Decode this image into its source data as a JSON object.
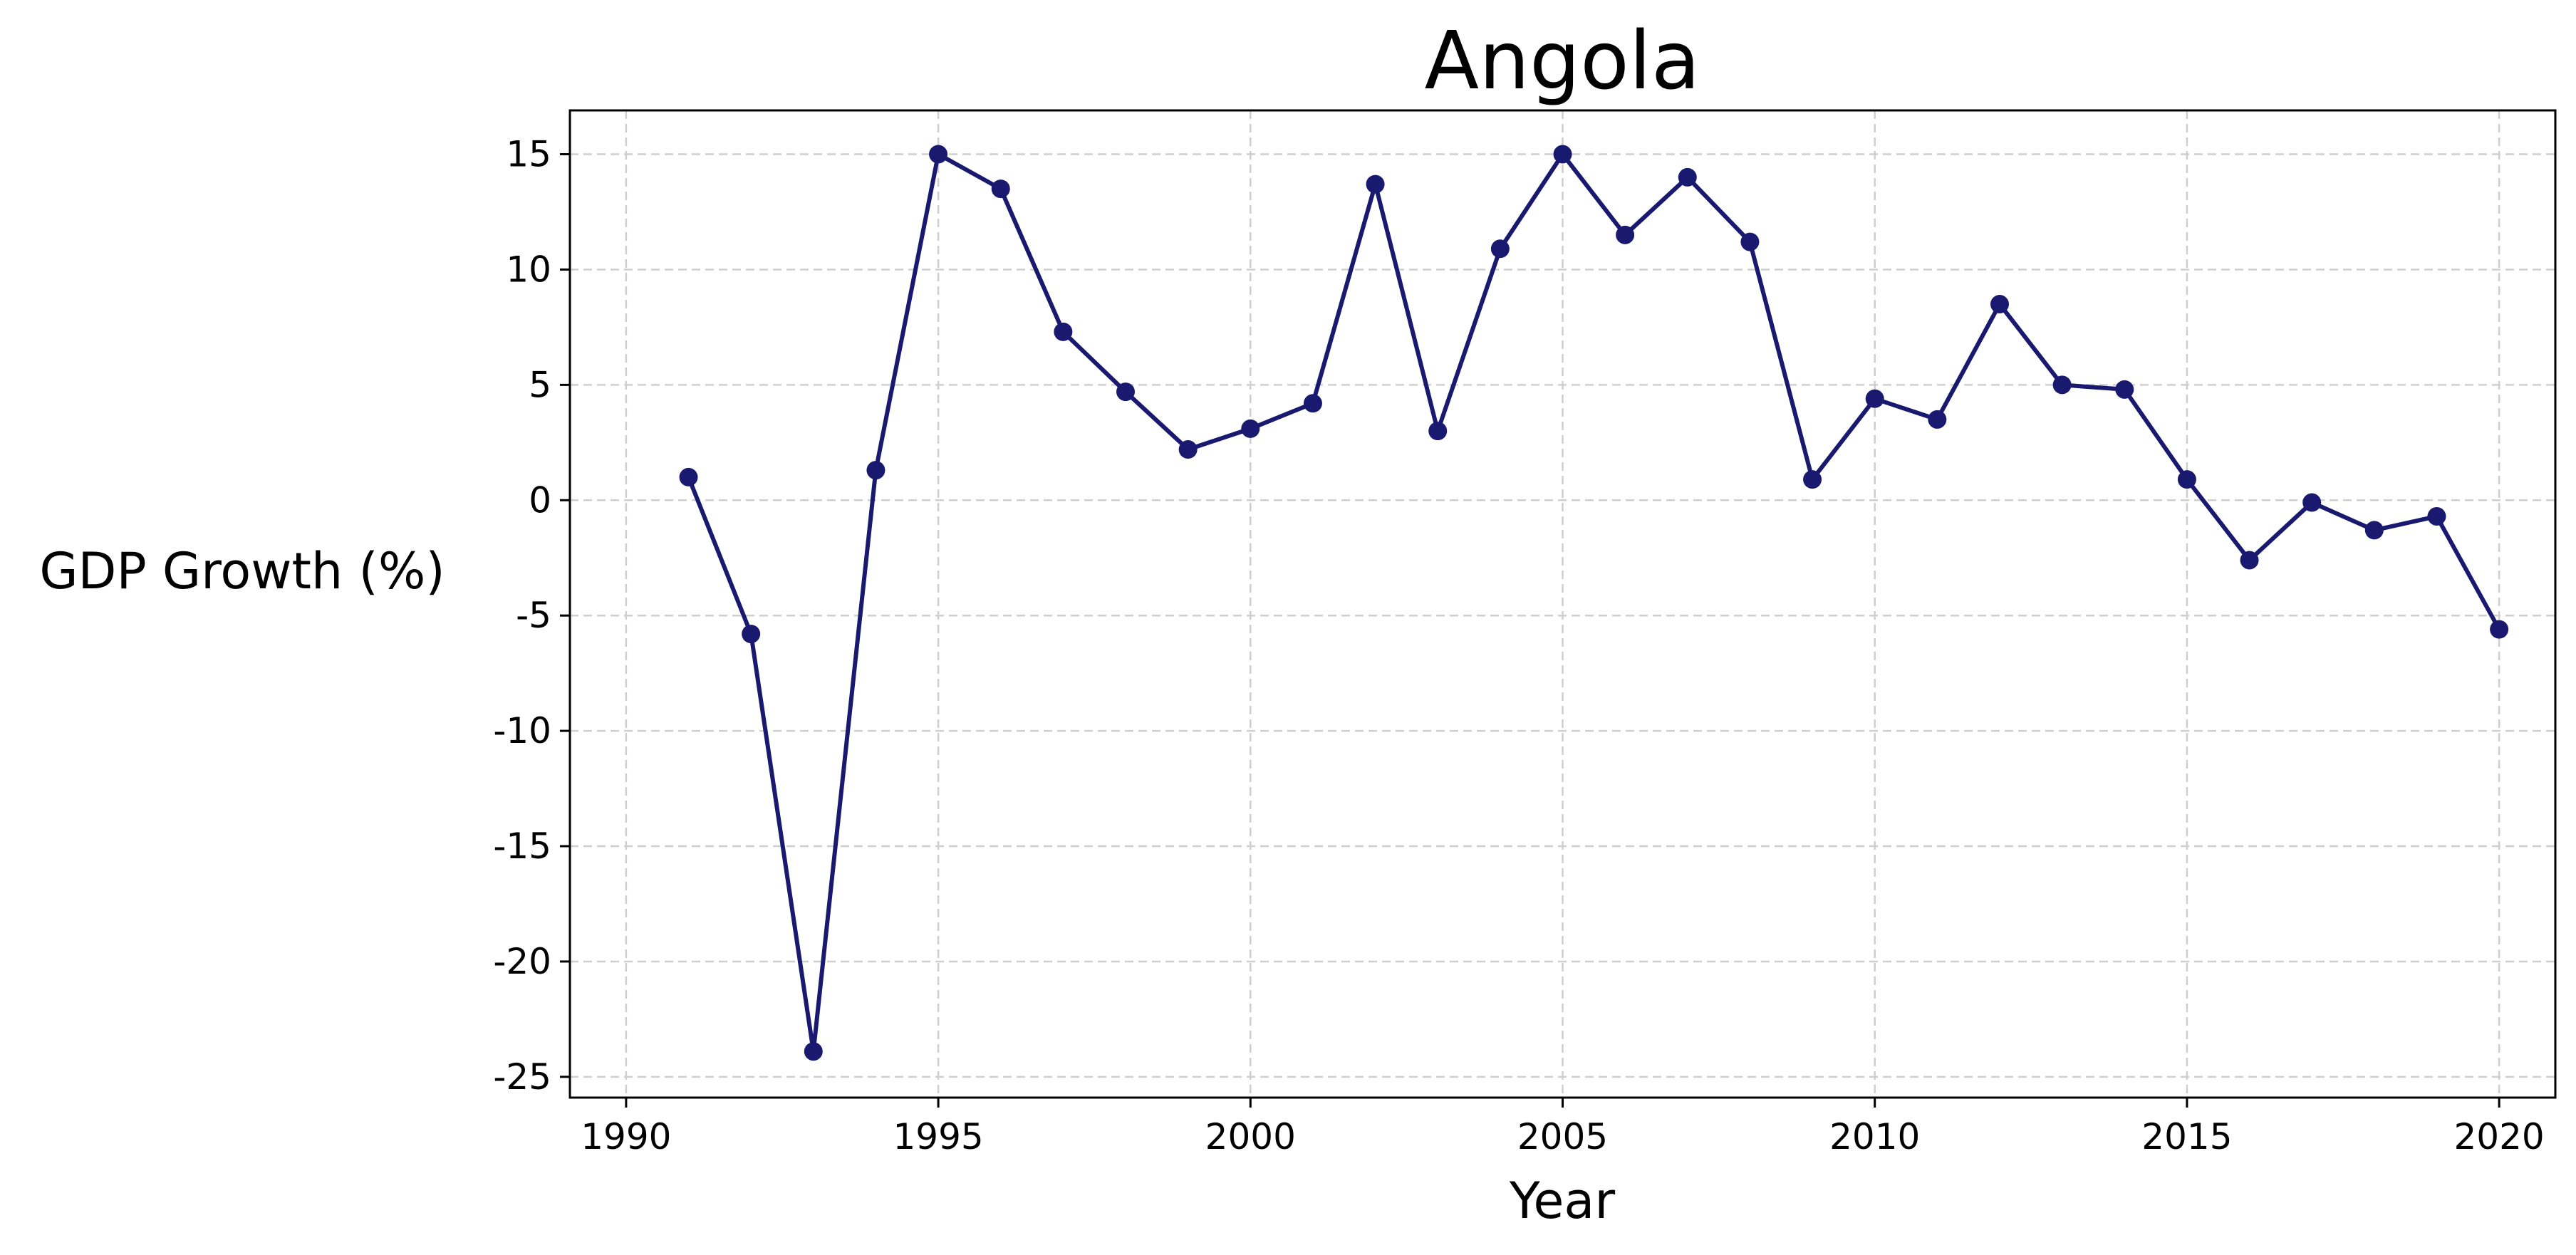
{
  "chart_data": {
    "type": "line",
    "title": "Angola",
    "xlabel": "Year",
    "ylabel": "GDP Growth (%)",
    "xlim": [
      1989.1,
      2020.9
    ],
    "ylim": [
      -25.9,
      16.9
    ],
    "xticks": [
      1990,
      1995,
      2000,
      2005,
      2010,
      2015,
      2020
    ],
    "yticks": [
      -25,
      -20,
      -15,
      -10,
      -5,
      0,
      5,
      10,
      15
    ],
    "grid": true,
    "color": "#191970",
    "series": [
      {
        "x": [
          1991,
          1992,
          1993,
          1994,
          1995,
          1996,
          1997,
          1998,
          1999,
          2000,
          2001,
          2002,
          2003,
          2004,
          2005,
          2006,
          2007,
          2008,
          2009,
          2010,
          2011,
          2012,
          2013,
          2014,
          2015,
          2016,
          2017,
          2018,
          2019,
          2020
        ],
        "y": [
          1.0,
          -5.8,
          -23.9,
          1.3,
          15.0,
          13.5,
          7.3,
          4.7,
          2.2,
          3.1,
          4.2,
          13.7,
          3.0,
          10.9,
          15.0,
          11.5,
          14.0,
          11.2,
          0.9,
          4.4,
          3.5,
          8.5,
          5.0,
          4.8,
          0.9,
          -2.6,
          -0.1,
          -1.3,
          -0.7,
          -5.6
        ]
      }
    ]
  }
}
